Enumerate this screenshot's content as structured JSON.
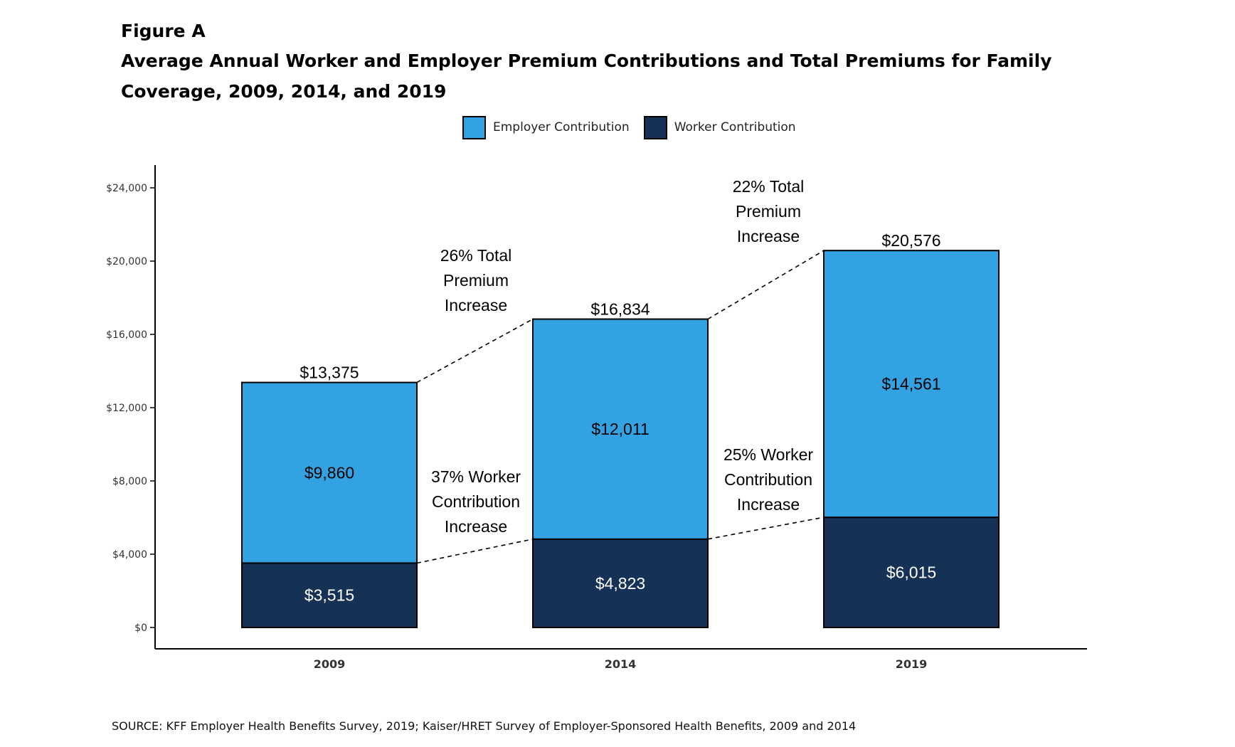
{
  "figure": {
    "label": "Figure A",
    "title": "Average Annual Worker and Employer Premium Contributions and Total Premiums for Family Coverage, 2009, 2014, and 2019",
    "source": "SOURCE: KFF Employer Health Benefits Survey, 2019; Kaiser/HRET Survey of Employer-Sponsored Health Benefits, 2009 and 2014"
  },
  "colors": {
    "employer": "#33a2e2",
    "worker": "#153256",
    "axis": "#000000",
    "label_dark": "#000000",
    "label_light": "#ffffff"
  },
  "chart_data": {
    "type": "bar",
    "stacked": true,
    "categories": [
      "2009",
      "2014",
      "2019"
    ],
    "series": [
      {
        "name": "Worker Contribution",
        "values": [
          3515,
          4823,
          6015
        ],
        "labels": [
          "$3,515",
          "$4,823",
          "$6,015"
        ]
      },
      {
        "name": "Employer Contribution",
        "values": [
          9860,
          12011,
          14561
        ],
        "labels": [
          "$9,860",
          "$12,011",
          "$14,561"
        ]
      }
    ],
    "totals": [
      13375,
      16834,
      20576
    ],
    "total_labels": [
      "$13,375",
      "$16,834",
      "$20,576"
    ],
    "ylim": [
      0,
      24000
    ],
    "y_ticks": [
      0,
      4000,
      8000,
      12000,
      16000,
      20000,
      24000
    ],
    "y_tick_labels": [
      "$0",
      "$4,000",
      "$8,000",
      "$12,000",
      "$16,000",
      "$20,000",
      "$24,000"
    ],
    "legend": [
      "Employer Contribution",
      "Worker Contribution"
    ],
    "legend_position": "top-center",
    "grid": false,
    "annotations": [
      {
        "id": "total-2009-2014",
        "lines": [
          "26% Total",
          "Premium",
          "Increase"
        ]
      },
      {
        "id": "total-2014-2019",
        "lines": [
          "22% Total",
          "Premium",
          "Increase"
        ]
      },
      {
        "id": "worker-2009-2014",
        "lines": [
          "37% Worker",
          "Contribution",
          "Increase"
        ]
      },
      {
        "id": "worker-2014-2019",
        "lines": [
          "25% Worker",
          "Contribution",
          "Increase"
        ]
      }
    ]
  }
}
